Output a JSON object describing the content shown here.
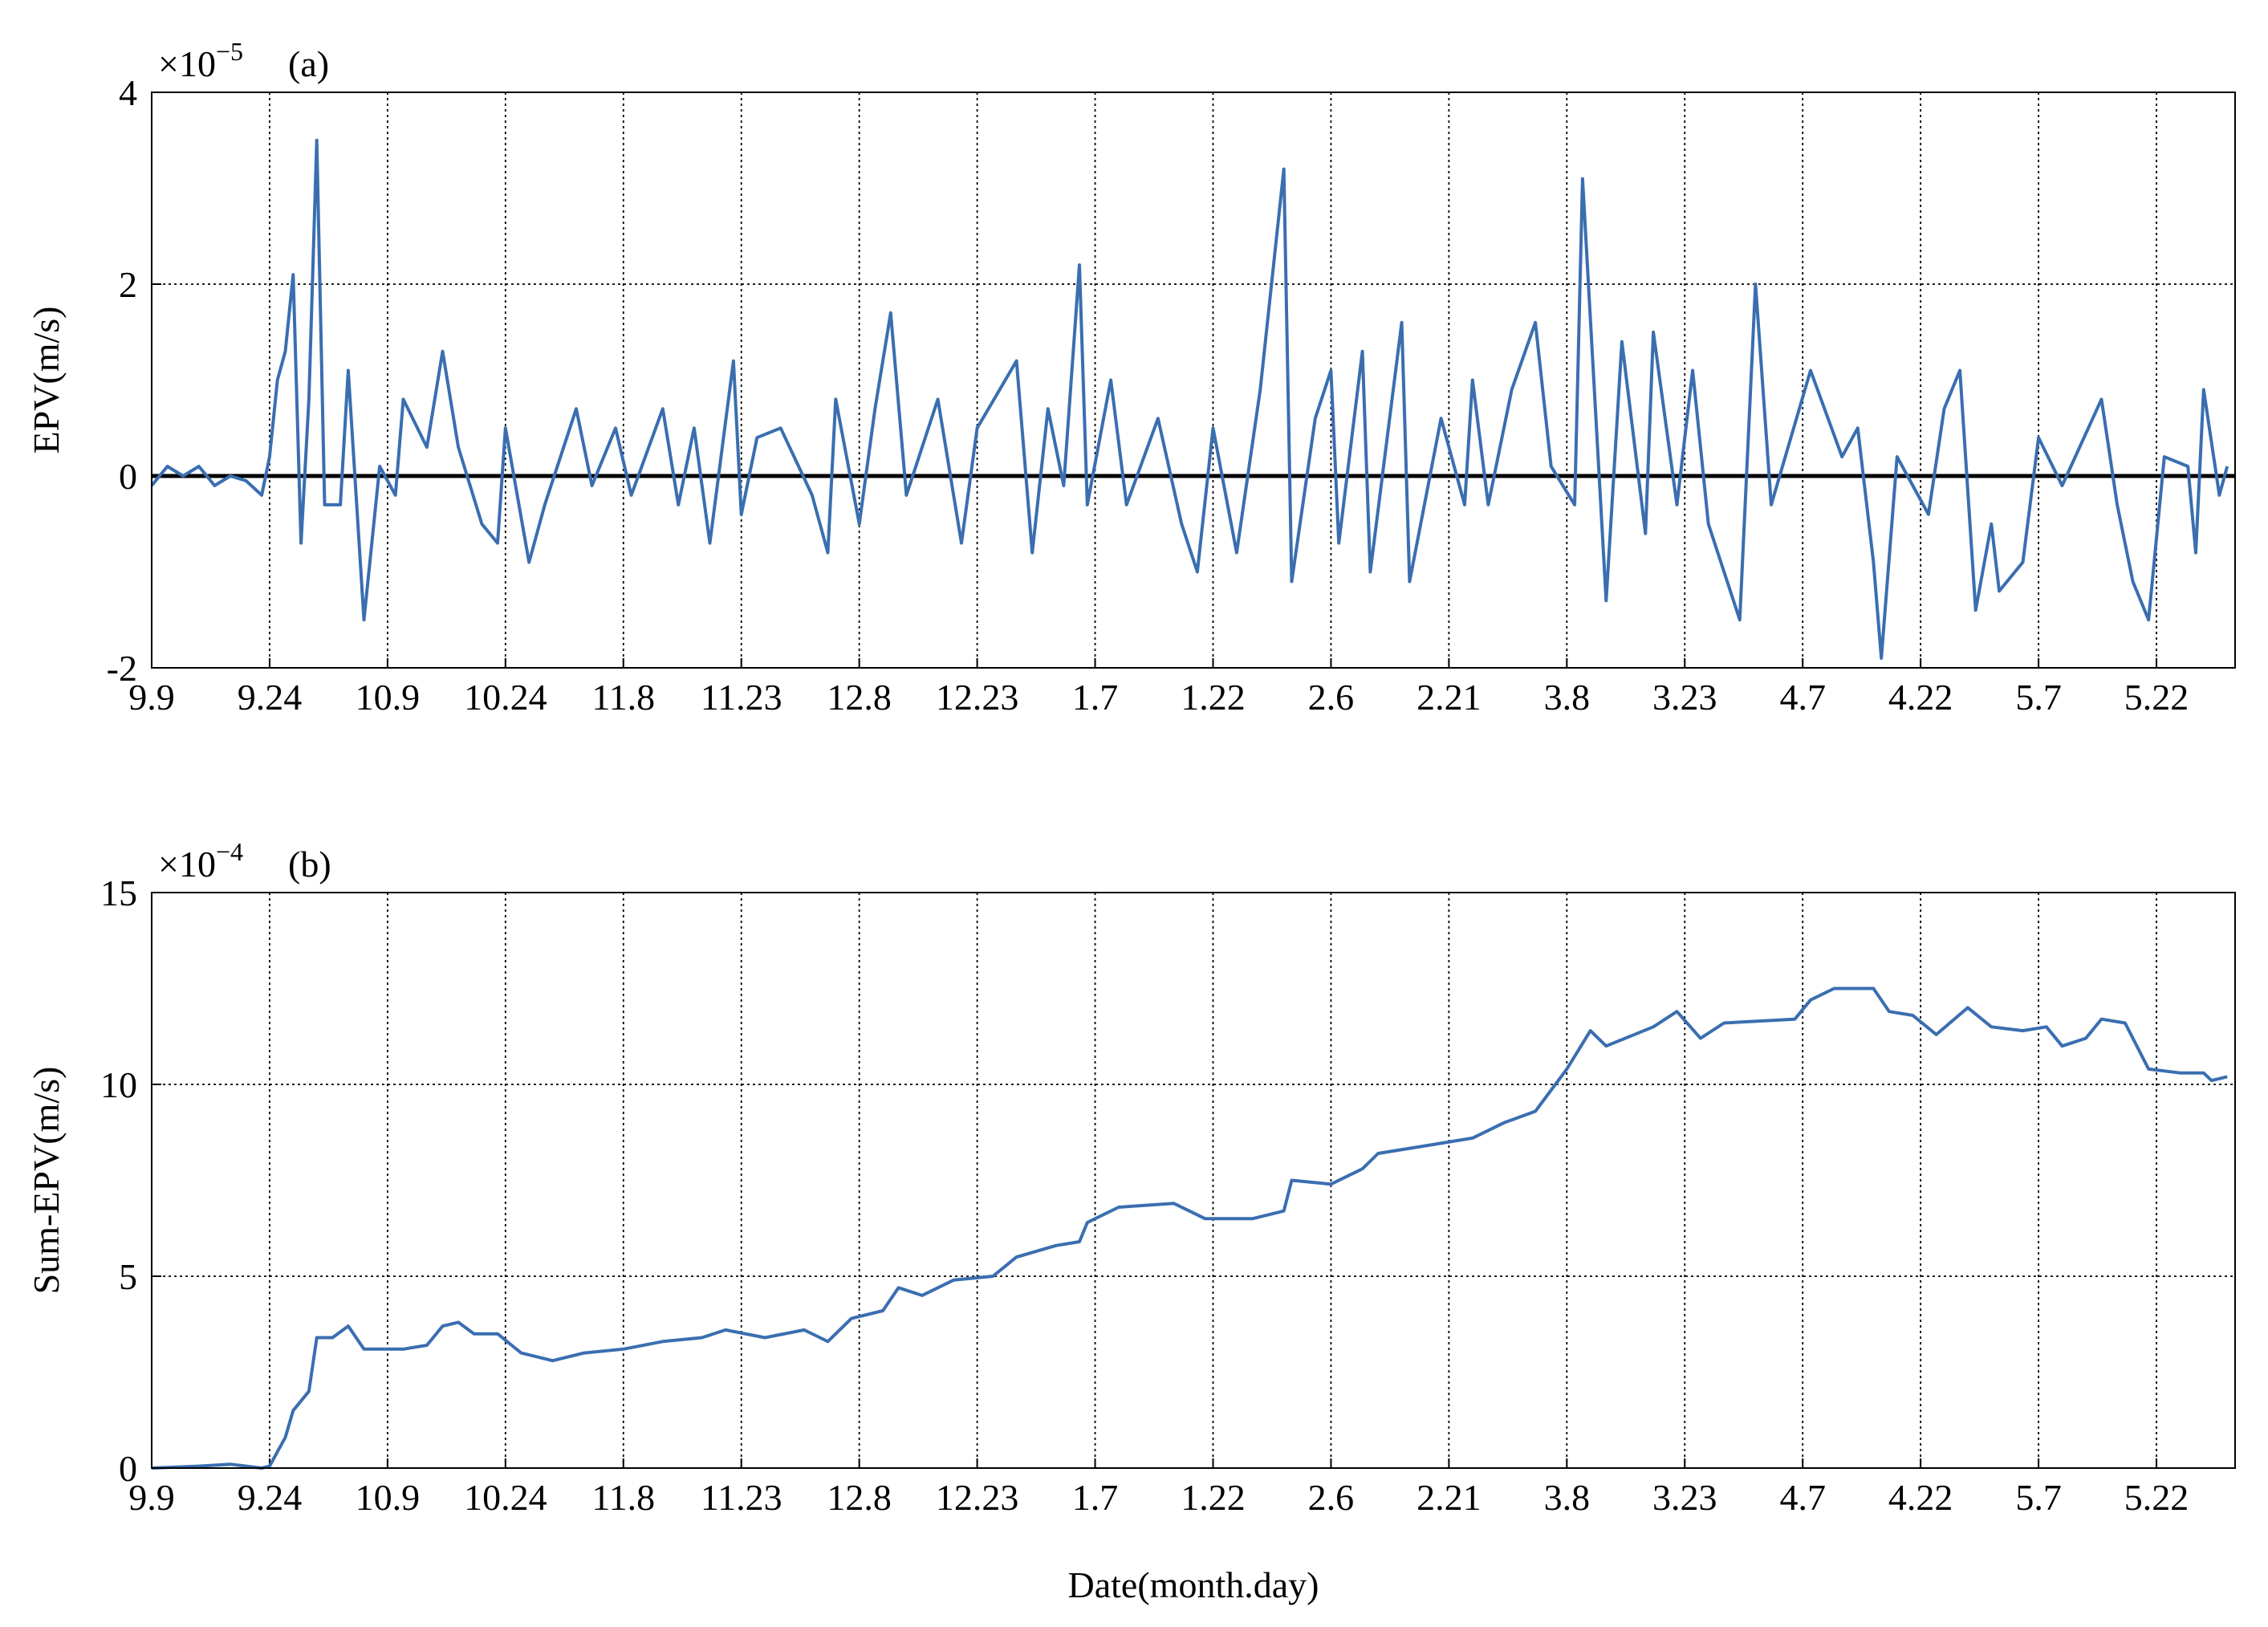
{
  "chart_data": [
    {
      "type": "line",
      "panel_label": "(a)",
      "multiplier": "×10",
      "exponent": "−5",
      "y_label": "EPV(m/s)",
      "xlim": [
        0,
        265
      ],
      "xticks": [
        {
          "value": 0,
          "label": "9.9"
        },
        {
          "value": 15,
          "label": "9.24"
        },
        {
          "value": 30,
          "label": "10.9"
        },
        {
          "value": 45,
          "label": "10.24"
        },
        {
          "value": 60,
          "label": "11.8"
        },
        {
          "value": 75,
          "label": "11.23"
        },
        {
          "value": 90,
          "label": "12.8"
        },
        {
          "value": 105,
          "label": "12.23"
        },
        {
          "value": 120,
          "label": "1.7"
        },
        {
          "value": 135,
          "label": "1.22"
        },
        {
          "value": 150,
          "label": "2.6"
        },
        {
          "value": 165,
          "label": "2.21"
        },
        {
          "value": 180,
          "label": "3.8"
        },
        {
          "value": 195,
          "label": "3.23"
        },
        {
          "value": 210,
          "label": "4.7"
        },
        {
          "value": 225,
          "label": "4.22"
        },
        {
          "value": 240,
          "label": "5.7"
        },
        {
          "value": 255,
          "label": "5.22"
        }
      ],
      "ylim": [
        -2,
        4
      ],
      "yticks": [
        -2,
        0,
        2,
        4
      ],
      "grid": true,
      "zero_line": 0,
      "color": "#3a6eb0",
      "x": [
        0,
        2,
        4,
        6,
        8,
        10,
        12,
        14,
        15,
        16,
        17,
        18,
        19,
        20,
        21,
        22,
        24,
        25,
        27,
        29,
        31,
        32,
        35,
        37,
        39,
        42,
        44,
        45,
        48,
        50,
        54,
        56,
        59,
        61,
        65,
        67,
        69,
        71,
        74,
        75,
        77,
        80,
        84,
        86,
        87,
        90,
        92,
        94,
        96,
        100,
        103,
        105,
        110,
        112,
        114,
        116,
        118,
        119,
        122,
        124,
        128,
        131,
        133,
        135,
        138,
        141,
        144,
        145,
        148,
        150,
        151,
        154,
        155,
        159,
        160,
        164,
        167,
        168,
        170,
        173,
        176,
        178,
        181,
        182,
        185,
        187,
        190,
        191,
        194,
        196,
        198,
        202,
        204,
        206,
        211,
        215,
        217,
        219,
        220,
        222,
        224,
        226,
        228,
        230,
        232,
        234,
        235,
        238,
        240,
        243,
        248,
        250,
        252,
        254,
        256,
        259,
        260,
        261,
        263,
        264
      ],
      "values": [
        -0.1,
        0.1,
        0,
        0.1,
        -0.1,
        0,
        -0.05,
        -0.2,
        0.2,
        1.0,
        1.3,
        2.1,
        -0.7,
        0.8,
        3.5,
        -0.3,
        -0.3,
        1.1,
        -1.5,
        0.1,
        -0.2,
        0.8,
        0.3,
        1.3,
        0.3,
        -0.5,
        -0.7,
        0.5,
        -0.9,
        -0.3,
        0.7,
        -0.1,
        0.5,
        -0.2,
        0.7,
        -0.3,
        0.5,
        -0.7,
        1.2,
        -0.4,
        0.4,
        0.5,
        -0.2,
        -0.8,
        0.8,
        -0.5,
        0.7,
        1.7,
        -0.2,
        0.8,
        -0.7,
        0.5,
        1.2,
        -0.8,
        0.7,
        -0.1,
        2.2,
        -0.3,
        1.0,
        -0.3,
        0.6,
        -0.5,
        -1.0,
        0.5,
        -0.8,
        0.9,
        3.2,
        -1.1,
        0.6,
        1.1,
        -0.7,
        1.3,
        -1.0,
        1.6,
        -1.1,
        0.6,
        -0.3,
        1.0,
        -0.3,
        0.9,
        1.6,
        0.1,
        -0.3,
        3.1,
        -1.3,
        1.4,
        -0.6,
        1.5,
        -0.3,
        1.1,
        -0.5,
        -1.5,
        2.0,
        -0.3,
        1.1,
        0.2,
        0.5,
        -0.9,
        -1.9,
        0.2,
        -0.1,
        -0.4,
        0.7,
        1.1,
        -1.4,
        -0.5,
        -1.2,
        -0.9,
        0.4,
        -0.1,
        0.8,
        -0.3,
        -1.1,
        -1.5,
        0.2,
        0.1,
        -0.8,
        0.9,
        -0.2,
        0.1
      ]
    },
    {
      "type": "line",
      "panel_label": "(b)",
      "multiplier": "×10",
      "exponent": "−4",
      "y_label": "Sum-EPV(m/s)",
      "x_label": "Date(month.day)",
      "xlim": [
        0,
        265
      ],
      "xticks": [
        {
          "value": 0,
          "label": "9.9"
        },
        {
          "value": 15,
          "label": "9.24"
        },
        {
          "value": 30,
          "label": "10.9"
        },
        {
          "value": 45,
          "label": "10.24"
        },
        {
          "value": 60,
          "label": "11.8"
        },
        {
          "value": 75,
          "label": "11.23"
        },
        {
          "value": 90,
          "label": "12.8"
        },
        {
          "value": 105,
          "label": "12.23"
        },
        {
          "value": 120,
          "label": "1.7"
        },
        {
          "value": 135,
          "label": "1.22"
        },
        {
          "value": 150,
          "label": "2.6"
        },
        {
          "value": 165,
          "label": "2.21"
        },
        {
          "value": 180,
          "label": "3.8"
        },
        {
          "value": 195,
          "label": "3.23"
        },
        {
          "value": 210,
          "label": "4.7"
        },
        {
          "value": 225,
          "label": "4.22"
        },
        {
          "value": 240,
          "label": "5.7"
        },
        {
          "value": 255,
          "label": "5.22"
        }
      ],
      "ylim": [
        0,
        15
      ],
      "yticks": [
        0,
        5,
        10,
        15
      ],
      "grid": true,
      "color": "#3a6eb0",
      "x": [
        0,
        6,
        10,
        14,
        15,
        17,
        18,
        20,
        21,
        23,
        25,
        27,
        32,
        35,
        37,
        39,
        41,
        44,
        47,
        51,
        55,
        60,
        65,
        70,
        73,
        78,
        83,
        86,
        89,
        93,
        95,
        98,
        102,
        107,
        110,
        115,
        118,
        119,
        123,
        130,
        134,
        140,
        144,
        145,
        150,
        154,
        156,
        162,
        168,
        172,
        176,
        180,
        183,
        185,
        191,
        194,
        197,
        200,
        209,
        211,
        214,
        219,
        221,
        224,
        227,
        231,
        234,
        238,
        241,
        243,
        246,
        248,
        251,
        254,
        258,
        261,
        262,
        264
      ],
      "values": [
        0,
        0.05,
        0.1,
        0,
        0.05,
        0.8,
        1.5,
        2.0,
        3.4,
        3.4,
        3.7,
        3.1,
        3.1,
        3.2,
        3.7,
        3.8,
        3.5,
        3.5,
        3.0,
        2.8,
        3.0,
        3.1,
        3.3,
        3.4,
        3.6,
        3.4,
        3.6,
        3.3,
        3.9,
        4.1,
        4.7,
        4.5,
        4.9,
        5.0,
        5.5,
        5.8,
        5.9,
        6.4,
        6.8,
        6.9,
        6.5,
        6.5,
        6.7,
        7.5,
        7.4,
        7.8,
        8.2,
        8.4,
        8.6,
        9.0,
        9.3,
        10.4,
        11.4,
        11.0,
        11.5,
        11.9,
        11.2,
        11.6,
        11.7,
        12.2,
        12.5,
        12.5,
        11.9,
        11.8,
        11.3,
        12.0,
        11.5,
        11.4,
        11.5,
        11.0,
        11.2,
        11.7,
        11.6,
        10.4,
        10.3,
        10.3,
        10.1,
        10.2
      ]
    }
  ]
}
